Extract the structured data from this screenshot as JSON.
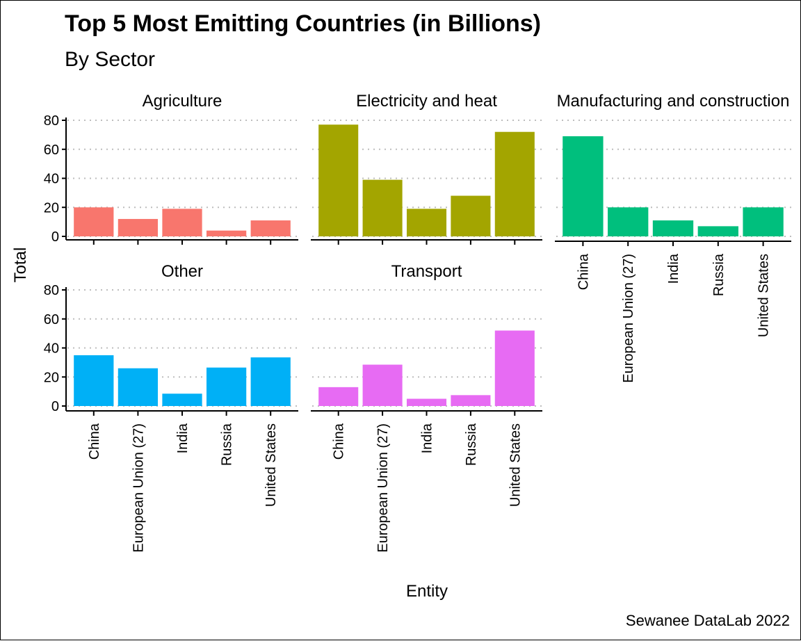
{
  "chart_data": {
    "type": "bar",
    "title": "Top 5 Most Emitting Countries (in Billions)",
    "subtitle": "By Sector",
    "xlabel": "Entity",
    "ylabel": "Total",
    "caption": "Sewanee DataLab 2022",
    "categories": [
      "China",
      "European Union (27)",
      "India",
      "Russia",
      "United States"
    ],
    "ylim": [
      0,
      80
    ],
    "yticks": [
      0,
      20,
      40,
      60,
      80
    ],
    "grid": "horizontal dotted",
    "legend": "none",
    "panels": [
      {
        "name": "Agriculture",
        "color": "#F8766D",
        "values": [
          20,
          12,
          19,
          4,
          11
        ]
      },
      {
        "name": "Electricity and heat",
        "color": "#A3A500",
        "values": [
          77,
          39,
          19,
          28,
          72
        ]
      },
      {
        "name": "Manufacturing and construction",
        "color": "#00BF7D",
        "values": [
          69,
          20,
          11,
          7,
          20
        ]
      },
      {
        "name": "Other",
        "color": "#00B0F6",
        "values": [
          35,
          26,
          8.5,
          26.5,
          33.5
        ]
      },
      {
        "name": "Transport",
        "color": "#E76BF3",
        "values": [
          13,
          28.5,
          5,
          7.5,
          52
        ]
      }
    ]
  }
}
